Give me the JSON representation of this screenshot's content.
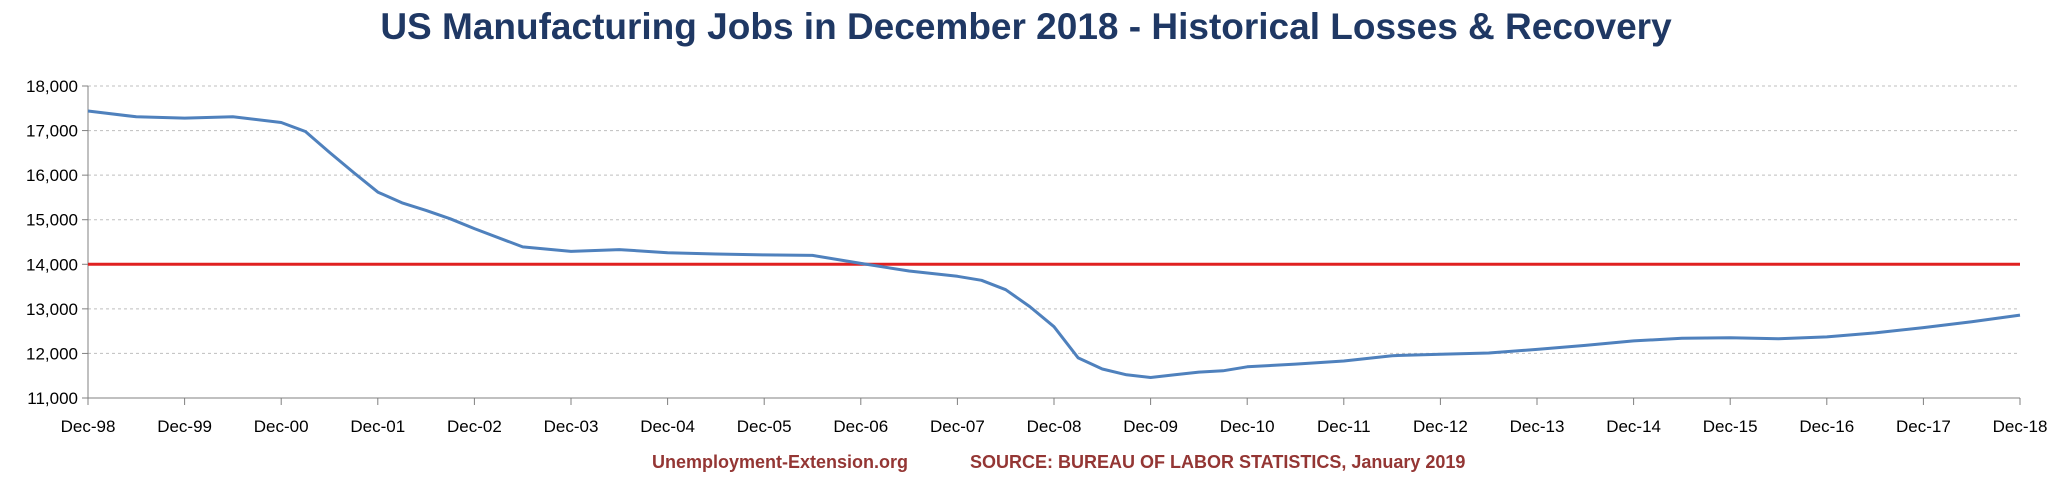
{
  "title": "US Manufacturing Jobs in December 2018 - Historical Losses & Recovery",
  "footer": {
    "site": "Unemployment-Extension.org",
    "source": "SOURCE: BUREAU OF LABOR STATISTICS, January 2019"
  },
  "colors": {
    "series": "#4f81bd",
    "reference_line": "#e02020",
    "title": "#1f3864",
    "footer": "#943634",
    "grid": "#bfbfbf"
  },
  "chart_data": {
    "type": "line",
    "title": "US Manufacturing Jobs in December 2018 - Historical Losses & Recovery",
    "xlabel": "",
    "ylabel": "",
    "ylim": [
      11000,
      18000
    ],
    "yticks": [
      11000,
      12000,
      13000,
      14000,
      15000,
      16000,
      17000,
      18000
    ],
    "ytick_labels": [
      "11,000",
      "12,000",
      "13,000",
      "14,000",
      "15,000",
      "16,000",
      "17,000",
      "18,000"
    ],
    "xtick_labels": [
      "Dec-98",
      "Dec-99",
      "Dec-00",
      "Dec-01",
      "Dec-02",
      "Dec-03",
      "Dec-04",
      "Dec-05",
      "Dec-06",
      "Dec-07",
      "Dec-08",
      "Dec-09",
      "Dec-10",
      "Dec-11",
      "Dec-12",
      "Dec-13",
      "Dec-14",
      "Dec-15",
      "Dec-16",
      "Dec-17",
      "Dec-18"
    ],
    "grid": true,
    "reference_line": {
      "y": 14000
    },
    "series": [
      {
        "x": [
          "Dec-98",
          "Jun-99",
          "Dec-99",
          "Jun-00",
          "Dec-00",
          "Mar-01",
          "Jun-01",
          "Sep-01",
          "Dec-01",
          "Mar-02",
          "Jun-02",
          "Sep-02",
          "Dec-02",
          "Jun-03",
          "Dec-03",
          "Jun-04",
          "Dec-04",
          "Jun-05",
          "Dec-05",
          "Jun-06",
          "Dec-06",
          "Jun-07",
          "Dec-07",
          "Mar-08",
          "Jun-08",
          "Sep-08",
          "Dec-08",
          "Mar-09",
          "Jun-09",
          "Sep-09",
          "Dec-09",
          "Mar-10",
          "Jun-10",
          "Sep-10",
          "Dec-10",
          "Jun-11",
          "Dec-11",
          "Jun-12",
          "Dec-12",
          "Jun-13",
          "Dec-13",
          "Jun-14",
          "Dec-14",
          "Jun-15",
          "Dec-15",
          "Jun-16",
          "Dec-16",
          "Jun-17",
          "Dec-17",
          "Jun-18",
          "Dec-18"
        ],
        "values": [
          17440,
          17310,
          17280,
          17310,
          17180,
          16980,
          16510,
          16060,
          15620,
          15380,
          15210,
          15020,
          14800,
          14390,
          14290,
          14330,
          14260,
          14230,
          14210,
          14200,
          14020,
          13850,
          13730,
          13640,
          13430,
          13050,
          12600,
          11900,
          11650,
          11520,
          11460,
          11520,
          11580,
          11610,
          11700,
          11760,
          11830,
          11950,
          11980,
          12010,
          12090,
          12180,
          12280,
          12340,
          12350,
          12330,
          12370,
          12460,
          12580,
          12710,
          12860
        ]
      }
    ]
  }
}
